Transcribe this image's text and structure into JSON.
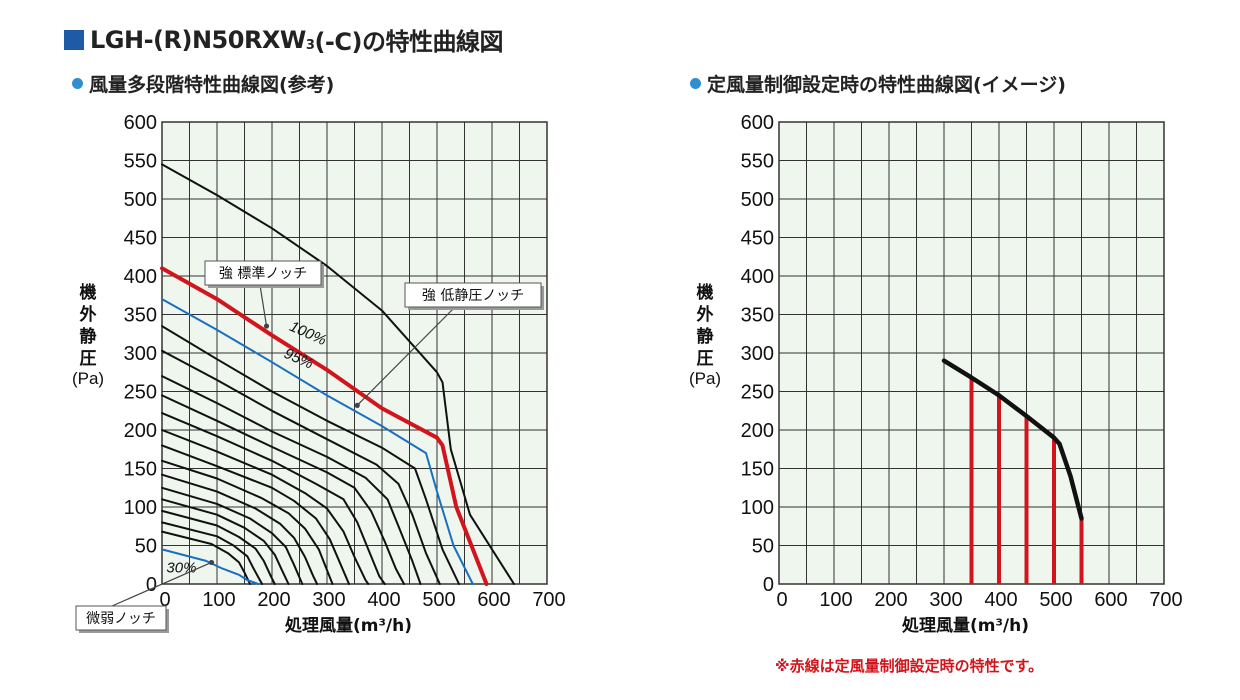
{
  "title": {
    "main": "LGH-(R)N50RXW",
    "sub": "3",
    "suffix": "(-C)の特性曲線図"
  },
  "colors": {
    "grid_bg": "#eef6ee",
    "grid_line": "#333333",
    "red": "#d2151c",
    "blue": "#1a6fc0",
    "black": "#111111",
    "accent": "#1f5aa6"
  },
  "chart_data": [
    {
      "type": "line",
      "title": "●風量多段階特性曲線図(参考)",
      "title_text": "風量多段階特性曲線図(参考)",
      "xlabel": "処理風量(m³/h)",
      "ylabel": "機外静圧",
      "ylabel_chars": [
        "機",
        "外",
        "静",
        "圧"
      ],
      "yunit": "(Pa)",
      "xlim": [
        0,
        700
      ],
      "ylim": [
        0,
        600
      ],
      "xticks": [
        "0",
        "100",
        "200",
        "300",
        "400",
        "500",
        "600",
        "700"
      ],
      "yticks": [
        "0",
        "50",
        "100",
        "150",
        "200",
        "250",
        "300",
        "350",
        "400",
        "450",
        "500",
        "550",
        "600"
      ],
      "series": [
        {
          "name": "強 低静圧ノッチ",
          "color": "black",
          "width": 2,
          "points": [
            [
              0,
              545
            ],
            [
              100,
              505
            ],
            [
              200,
              462
            ],
            [
              300,
              413
            ],
            [
              400,
              355
            ],
            [
              500,
              275
            ],
            [
              510,
              262
            ],
            [
              525,
              175
            ],
            [
              560,
              90
            ],
            [
              640,
              0
            ]
          ]
        },
        {
          "name": "強 標準ノッチ 100%",
          "color": "red",
          "width": 4,
          "points": [
            [
              0,
              410
            ],
            [
              100,
              370
            ],
            [
              200,
              323
            ],
            [
              300,
              278
            ],
            [
              400,
              228
            ],
            [
              500,
              190
            ],
            [
              510,
              180
            ],
            [
              535,
              100
            ],
            [
              590,
              0
            ]
          ]
        },
        {
          "name": "95%",
          "color": "blue",
          "width": 2,
          "points": [
            [
              0,
              370
            ],
            [
              100,
              330
            ],
            [
              200,
              288
            ],
            [
              300,
              245
            ],
            [
              400,
              205
            ],
            [
              480,
              170
            ],
            [
              500,
              120
            ],
            [
              530,
              50
            ],
            [
              565,
              0
            ]
          ]
        },
        {
          "name": "c1",
          "color": "black",
          "width": 2,
          "points": [
            [
              0,
              335
            ],
            [
              100,
              292
            ],
            [
              200,
              250
            ],
            [
              300,
              212
            ],
            [
              400,
              177
            ],
            [
              460,
              150
            ],
            [
              480,
              110
            ],
            [
              510,
              45
            ],
            [
              540,
              0
            ]
          ]
        },
        {
          "name": "c2",
          "color": "black",
          "width": 2,
          "points": [
            [
              0,
              303
            ],
            [
              100,
              265
            ],
            [
              200,
              225
            ],
            [
              300,
              188
            ],
            [
              390,
              155
            ],
            [
              430,
              130
            ],
            [
              455,
              90
            ],
            [
              480,
              40
            ],
            [
              505,
              0
            ]
          ]
        },
        {
          "name": "c3",
          "color": "black",
          "width": 2,
          "points": [
            [
              0,
              270
            ],
            [
              100,
              235
            ],
            [
              200,
              198
            ],
            [
              300,
              165
            ],
            [
              370,
              138
            ],
            [
              410,
              110
            ],
            [
              430,
              75
            ],
            [
              455,
              30
            ],
            [
              470,
              0
            ]
          ]
        },
        {
          "name": "c4",
          "color": "black",
          "width": 2,
          "points": [
            [
              0,
              245
            ],
            [
              100,
              212
            ],
            [
              200,
              178
            ],
            [
              300,
              145
            ],
            [
              350,
              125
            ],
            [
              380,
              95
            ],
            [
              405,
              55
            ],
            [
              425,
              20
            ],
            [
              440,
              0
            ]
          ]
        },
        {
          "name": "c5",
          "color": "black",
          "width": 2,
          "points": [
            [
              0,
              222
            ],
            [
              100,
              192
            ],
            [
              200,
              160
            ],
            [
              280,
              130
            ],
            [
              330,
              110
            ],
            [
              355,
              80
            ],
            [
              375,
              45
            ],
            [
              395,
              10
            ],
            [
              405,
              0
            ]
          ]
        },
        {
          "name": "c6",
          "color": "black",
          "width": 2,
          "points": [
            [
              0,
              200
            ],
            [
              100,
              172
            ],
            [
              200,
              142
            ],
            [
              260,
              118
            ],
            [
              300,
              98
            ],
            [
              330,
              68
            ],
            [
              350,
              35
            ],
            [
              370,
              5
            ],
            [
              375,
              0
            ]
          ]
        },
        {
          "name": "c7",
          "color": "black",
          "width": 2,
          "points": [
            [
              0,
              180
            ],
            [
              100,
              153
            ],
            [
              200,
              125
            ],
            [
              240,
              108
            ],
            [
              280,
              85
            ],
            [
              305,
              58
            ],
            [
              325,
              25
            ],
            [
              340,
              0
            ]
          ]
        },
        {
          "name": "c8",
          "color": "black",
          "width": 2,
          "points": [
            [
              0,
              160
            ],
            [
              100,
              137
            ],
            [
              180,
              112
            ],
            [
              230,
              92
            ],
            [
              260,
              72
            ],
            [
              285,
              45
            ],
            [
              300,
              18
            ],
            [
              310,
              0
            ]
          ]
        },
        {
          "name": "c9",
          "color": "black",
          "width": 2,
          "points": [
            [
              0,
              142
            ],
            [
              100,
              120
            ],
            [
              170,
              98
            ],
            [
              215,
              78
            ],
            [
              240,
              60
            ],
            [
              260,
              35
            ],
            [
              275,
              10
            ],
            [
              282,
              0
            ]
          ]
        },
        {
          "name": "c10",
          "color": "black",
          "width": 2,
          "points": [
            [
              0,
              125
            ],
            [
              100,
              104
            ],
            [
              160,
              85
            ],
            [
              200,
              66
            ],
            [
              225,
              48
            ],
            [
              240,
              25
            ],
            [
              255,
              0
            ]
          ]
        },
        {
          "name": "c11",
          "color": "black",
          "width": 2,
          "points": [
            [
              0,
              110
            ],
            [
              100,
              90
            ],
            [
              150,
              73
            ],
            [
              185,
              56
            ],
            [
              205,
              38
            ],
            [
              218,
              18
            ],
            [
              230,
              0
            ]
          ]
        },
        {
          "name": "c12",
          "color": "black",
          "width": 2,
          "points": [
            [
              0,
              95
            ],
            [
              100,
              76
            ],
            [
              140,
              61
            ],
            [
              170,
              46
            ],
            [
              185,
              30
            ],
            [
              198,
              10
            ],
            [
              205,
              0
            ]
          ]
        },
        {
          "name": "c13",
          "color": "black",
          "width": 2,
          "points": [
            [
              0,
              80
            ],
            [
              100,
              62
            ],
            [
              130,
              50
            ],
            [
              155,
              36
            ],
            [
              165,
              22
            ],
            [
              178,
              5
            ],
            [
              182,
              0
            ]
          ]
        },
        {
          "name": "c14",
          "color": "black",
          "width": 2,
          "points": [
            [
              0,
              68
            ],
            [
              90,
              52
            ],
            [
              120,
              40
            ],
            [
              140,
              28
            ],
            [
              150,
              15
            ],
            [
              160,
              0
            ]
          ]
        },
        {
          "name": "微弱ノッチ 30%",
          "color": "blue",
          "width": 2,
          "points": [
            [
              0,
              45
            ],
            [
              80,
              30
            ],
            [
              110,
              20
            ],
            [
              140,
              12
            ],
            [
              155,
              5
            ],
            [
              175,
              0
            ]
          ]
        }
      ],
      "annotations": [
        {
          "text": "100%",
          "x": 230,
          "y": 330,
          "rotate": 24
        },
        {
          "text": "95%",
          "x": 220,
          "y": 295,
          "rotate": 24
        },
        {
          "text": "30%",
          "x": 8,
          "y": 15,
          "rotate": 0
        }
      ],
      "callouts": [
        {
          "label": "強 標準ノッチ",
          "target": [
            190,
            335
          ]
        },
        {
          "label": "強 低静圧ノッチ",
          "target": [
            355,
            232
          ]
        },
        {
          "label": "微弱ノッチ",
          "target": [
            90,
            28
          ]
        }
      ]
    },
    {
      "type": "line",
      "title": "●定風量制御設定時の特性曲線図(イメージ)",
      "title_text": "定風量制御設定時の特性曲線図(イメージ)",
      "xlabel": "処理風量(m³/h)",
      "ylabel": "機外静圧",
      "ylabel_chars": [
        "機",
        "外",
        "静",
        "圧"
      ],
      "yunit": "(Pa)",
      "xlim": [
        0,
        700
      ],
      "ylim": [
        0,
        600
      ],
      "xticks": [
        "0",
        "100",
        "200",
        "300",
        "400",
        "500",
        "600",
        "700"
      ],
      "yticks": [
        "0",
        "50",
        "100",
        "150",
        "200",
        "250",
        "300",
        "350",
        "400",
        "450",
        "500",
        "550",
        "600"
      ],
      "curve": [
        [
          300,
          290
        ],
        [
          350,
          268
        ],
        [
          400,
          245
        ],
        [
          450,
          218
        ],
        [
          500,
          190
        ],
        [
          510,
          182
        ],
        [
          530,
          140
        ],
        [
          550,
          85
        ]
      ],
      "red_lines": [
        {
          "x": 350,
          "top": 268
        },
        {
          "x": 400,
          "top": 245
        },
        {
          "x": 450,
          "top": 218
        },
        {
          "x": 500,
          "top": 190
        },
        {
          "x": 550,
          "top": 85
        }
      ]
    }
  ],
  "note": "※赤線は定風量制御設定時の特性です。"
}
